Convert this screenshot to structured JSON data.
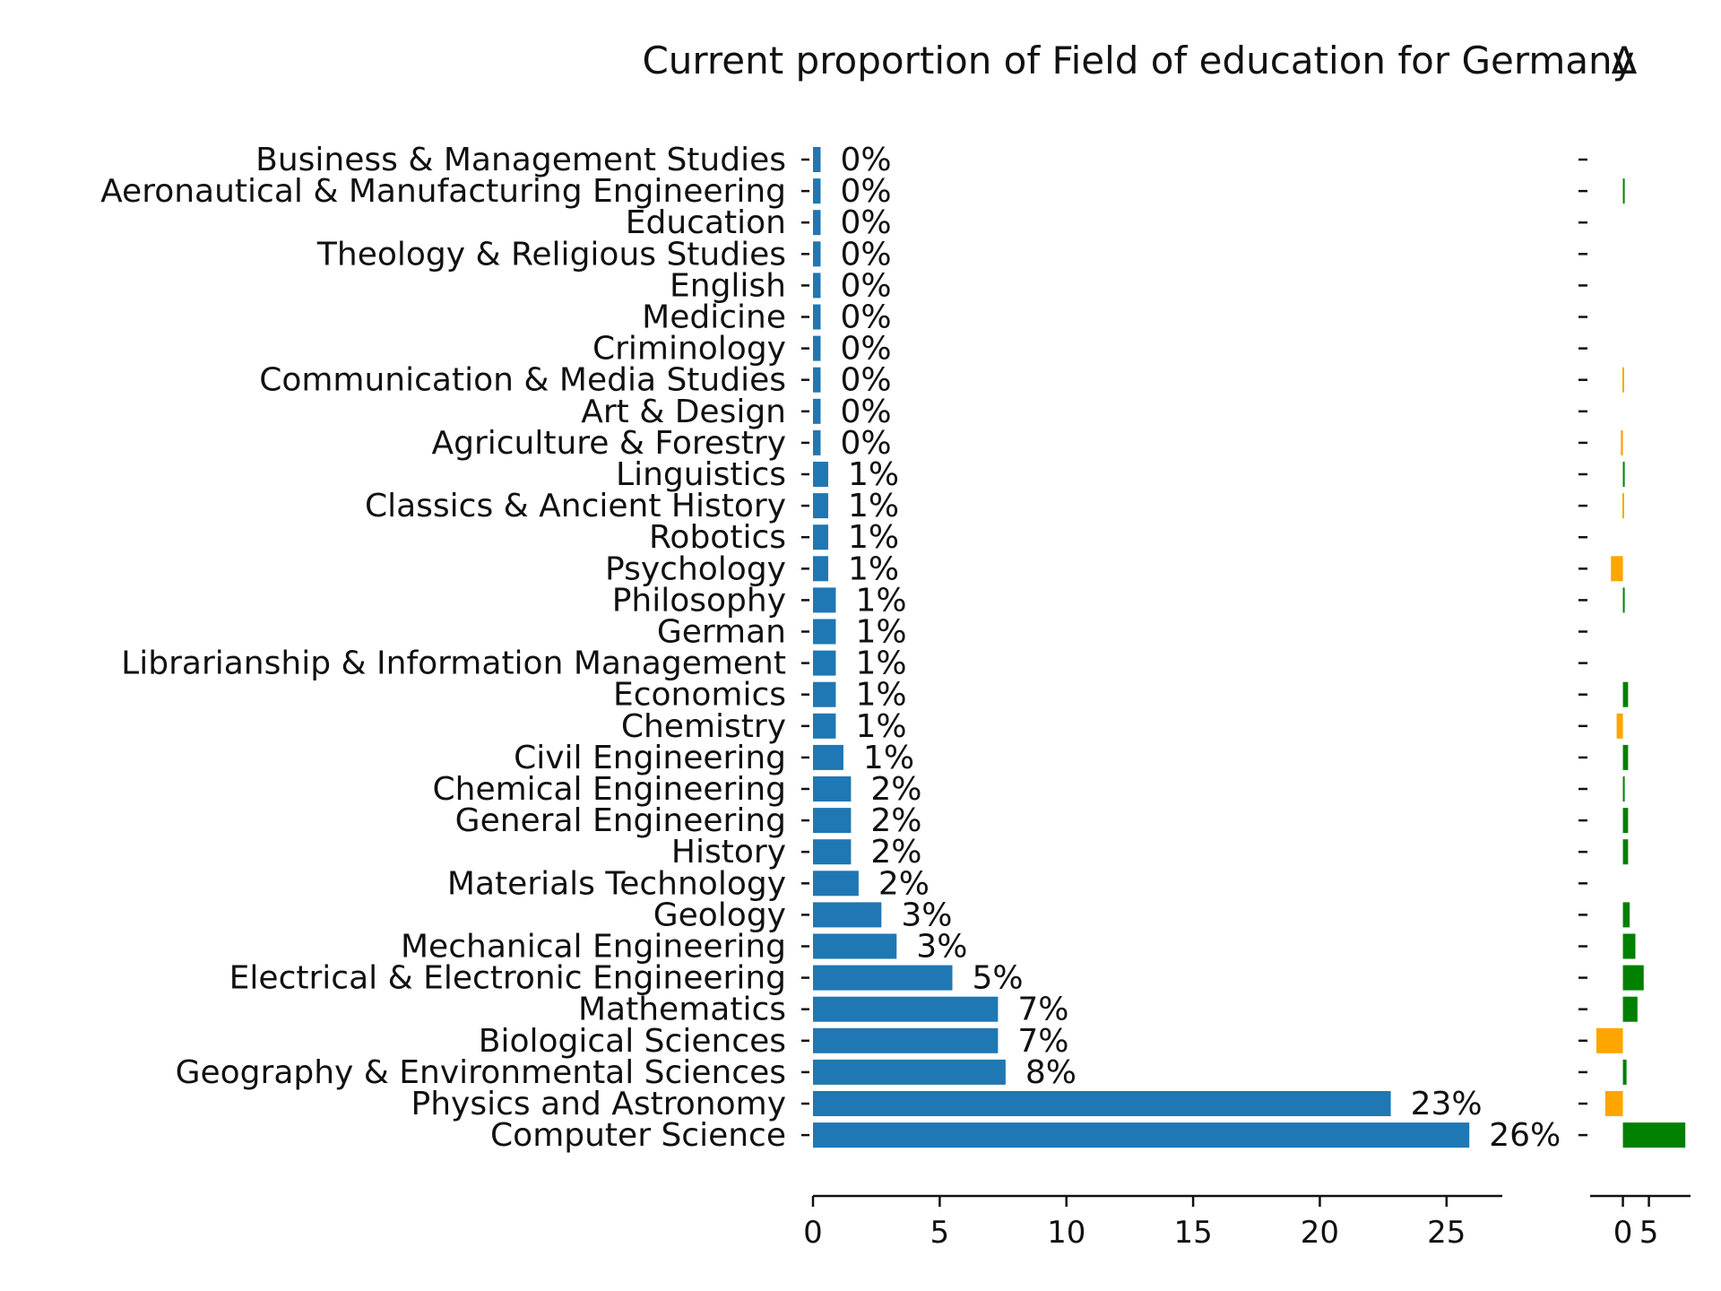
{
  "chart_data": [
    {
      "type": "bar",
      "orientation": "horizontal",
      "title": "Current proportion of Field of education for Germany",
      "categories": [
        "Business & Management Studies",
        "Aeronautical & Manufacturing Engineering",
        "Education",
        "Theology & Religious Studies",
        "English",
        "Medicine",
        "Criminology",
        "Communication & Media Studies",
        "Art & Design",
        "Agriculture & Forestry",
        "Linguistics",
        "Classics & Ancient History",
        "Robotics",
        "Psychology",
        "Philosophy",
        "German",
        "Librarianship & Information Management",
        "Economics",
        "Chemistry",
        "Civil Engineering",
        "Chemical Engineering",
        "General Engineering",
        "History",
        "Materials Technology",
        "Geology",
        "Mechanical Engineering",
        "Electrical & Electronic Engineering",
        "Mathematics",
        "Biological Sciences",
        "Geography & Environmental Sciences",
        "Physics and Astronomy",
        "Computer Science"
      ],
      "values": [
        0.3,
        0.3,
        0.3,
        0.3,
        0.3,
        0.3,
        0.3,
        0.3,
        0.3,
        0.3,
        0.6,
        0.6,
        0.6,
        0.6,
        0.9,
        0.9,
        0.9,
        0.9,
        0.9,
        1.2,
        1.5,
        1.5,
        1.5,
        1.8,
        2.7,
        3.3,
        5.5,
        7.3,
        7.3,
        7.6,
        22.8,
        25.9
      ],
      "value_labels": [
        "0%",
        "0%",
        "0%",
        "0%",
        "0%",
        "0%",
        "0%",
        "0%",
        "0%",
        "0%",
        "1%",
        "1%",
        "1%",
        "1%",
        "1%",
        "1%",
        "1%",
        "1%",
        "1%",
        "1%",
        "2%",
        "2%",
        "2%",
        "2%",
        "3%",
        "3%",
        "5%",
        "7%",
        "7%",
        "8%",
        "23%",
        "26%"
      ],
      "xlim": [
        0,
        27.2
      ],
      "xticks": [
        0,
        5,
        10,
        15,
        20,
        25
      ],
      "xlabel": "",
      "ylabel": "",
      "bar_color": "#1f77b4",
      "grid": false
    },
    {
      "type": "bar",
      "orientation": "horizontal",
      "title": "Δ",
      "categories_shared": true,
      "values": [
        0,
        0.1,
        0,
        0,
        0,
        0,
        0,
        -0.1,
        0,
        -0.4,
        0.3,
        -0.1,
        0,
        -2.3,
        0.3,
        0,
        0,
        1.0,
        -1.2,
        1.0,
        0.3,
        1.0,
        1.0,
        0,
        1.3,
        2.4,
        4.0,
        2.8,
        -5.1,
        0.7,
        -3.4,
        12.0
      ],
      "xlim": [
        -6.3,
        13.0
      ],
      "xticks": [
        0,
        5
      ],
      "positive_color": "#008000",
      "negative_color": "#ffa500",
      "grid": false
    }
  ]
}
